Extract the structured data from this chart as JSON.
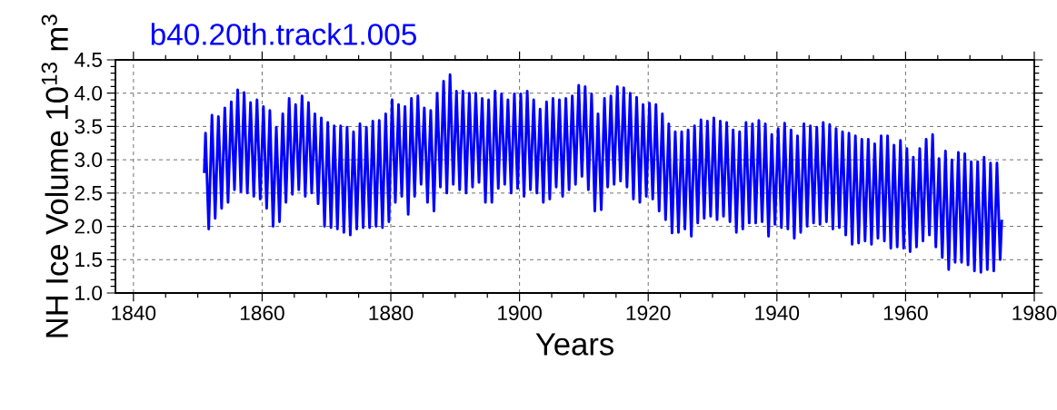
{
  "chart_data": {
    "type": "line",
    "title": "b40.20th.track1.005",
    "xlabel": "Years",
    "ylabel": "NH Ice Volume 10$^{13}$ m$^{3}$",
    "color": "#0000ff",
    "line_style": "solid",
    "grid": true,
    "xlim": [
      1837.2,
      1980
    ],
    "ylim": [
      1,
      4.5
    ],
    "xticks": [
      1840,
      1860,
      1880,
      1900,
      1920,
      1940,
      1960,
      1980
    ],
    "yticks": [
      {
        "value": 1,
        "label": "1.0"
      },
      {
        "value": 1.5,
        "label": "1.5"
      },
      {
        "value": 2,
        "label": "2.0"
      },
      {
        "value": 2.5,
        "label": "2.5"
      },
      {
        "value": 3,
        "label": "3.0"
      },
      {
        "value": 3.5,
        "label": "3.5"
      },
      {
        "value": 4,
        "label": "4.0"
      },
      {
        "value": 4.5,
        "label": "4.5"
      }
    ],
    "x": [
      1851.0,
      1851.2,
      1851.7,
      1852.2,
      1852.7,
      1853.2,
      1853.7,
      1854.2,
      1854.7,
      1855.2,
      1855.7,
      1856.2,
      1856.7,
      1857.2,
      1857.7,
      1858.2,
      1858.7,
      1859.2,
      1859.7,
      1860.2,
      1860.7,
      1861.2,
      1861.7,
      1862.2,
      1862.7,
      1863.2,
      1863.7,
      1864.2,
      1864.7,
      1865.2,
      1865.7,
      1866.2,
      1866.7,
      1867.2,
      1867.7,
      1868.2,
      1868.7,
      1869.2,
      1869.7,
      1870.2,
      1870.7,
      1871.2,
      1871.7,
      1872.2,
      1872.7,
      1873.2,
      1873.7,
      1874.2,
      1874.7,
      1875.2,
      1875.7,
      1876.2,
      1876.7,
      1877.2,
      1877.7,
      1878.2,
      1878.7,
      1879.2,
      1879.7,
      1880.2,
      1880.7,
      1881.2,
      1881.7,
      1882.2,
      1882.7,
      1883.2,
      1883.7,
      1884.2,
      1884.7,
      1885.2,
      1885.7,
      1886.2,
      1886.7,
      1887.2,
      1887.7,
      1888.2,
      1888.7,
      1889.2,
      1889.7,
      1890.2,
      1890.7,
      1891.2,
      1891.7,
      1892.2,
      1892.7,
      1893.2,
      1893.7,
      1894.2,
      1894.7,
      1895.2,
      1895.7,
      1896.2,
      1896.7,
      1897.2,
      1897.7,
      1898.2,
      1898.7,
      1899.2,
      1899.7,
      1900.2,
      1900.7,
      1901.2,
      1901.7,
      1902.2,
      1902.7,
      1903.2,
      1903.7,
      1904.2,
      1904.7,
      1905.2,
      1905.7,
      1906.2,
      1906.7,
      1907.2,
      1907.7,
      1908.2,
      1908.7,
      1909.2,
      1909.7,
      1910.2,
      1910.7,
      1911.2,
      1911.7,
      1912.2,
      1912.7,
      1913.2,
      1913.7,
      1914.2,
      1914.7,
      1915.2,
      1915.7,
      1916.2,
      1916.7,
      1917.2,
      1917.7,
      1918.2,
      1918.7,
      1919.2,
      1919.7,
      1920.2,
      1920.7,
      1921.2,
      1921.7,
      1922.2,
      1922.7,
      1923.2,
      1923.7,
      1924.2,
      1924.7,
      1925.2,
      1925.7,
      1926.2,
      1926.7,
      1927.2,
      1927.7,
      1928.2,
      1928.7,
      1929.2,
      1929.7,
      1930.2,
      1930.7,
      1931.2,
      1931.7,
      1932.2,
      1932.7,
      1933.2,
      1933.7,
      1934.2,
      1934.7,
      1935.2,
      1935.7,
      1936.2,
      1936.7,
      1937.2,
      1937.7,
      1938.2,
      1938.7,
      1939.2,
      1939.7,
      1940.2,
      1940.7,
      1941.2,
      1941.7,
      1942.2,
      1942.7,
      1943.2,
      1943.7,
      1944.2,
      1944.7,
      1945.2,
      1945.7,
      1946.2,
      1946.7,
      1947.2,
      1947.7,
      1948.2,
      1948.7,
      1949.2,
      1949.7,
      1950.2,
      1950.7,
      1951.2,
      1951.7,
      1952.2,
      1952.7,
      1953.2,
      1953.7,
      1954.2,
      1954.7,
      1955.2,
      1955.7,
      1956.2,
      1956.7,
      1957.2,
      1957.7,
      1958.2,
      1958.7,
      1959.2,
      1959.7,
      1960.2,
      1960.7,
      1961.2,
      1961.7,
      1962.2,
      1962.7,
      1963.2,
      1963.7,
      1964.2,
      1964.7,
      1965.2,
      1965.7,
      1966.2,
      1966.7,
      1967.2,
      1967.7,
      1968.2,
      1968.7,
      1969.2,
      1969.7,
      1970.2,
      1970.7,
      1971.2,
      1971.7,
      1972.2,
      1972.7,
      1973.2,
      1973.7,
      1974.2,
      1974.7,
      1974.95
    ],
    "values": [
      2.8,
      3.4,
      1.96,
      3.67,
      2.12,
      3.65,
      2.27,
      3.78,
      2.36,
      3.87,
      2.55,
      4.05,
      2.52,
      4.01,
      2.5,
      3.86,
      2.45,
      3.9,
      2.41,
      3.8,
      2.27,
      3.74,
      2.0,
      3.49,
      2.07,
      3.69,
      2.36,
      3.92,
      2.48,
      3.83,
      2.55,
      3.96,
      2.45,
      3.86,
      2.5,
      3.69,
      2.34,
      3.63,
      2.0,
      3.56,
      1.98,
      3.51,
      1.96,
      3.51,
      1.91,
      3.49,
      1.87,
      3.42,
      1.96,
      3.54,
      1.98,
      3.49,
      1.98,
      3.58,
      2.0,
      3.59,
      1.98,
      3.69,
      2.07,
      3.9,
      2.36,
      3.83,
      2.45,
      3.8,
      2.18,
      3.92,
      2.45,
      3.96,
      2.63,
      3.78,
      2.36,
      3.74,
      2.23,
      4.0,
      2.59,
      4.18,
      2.5,
      4.28,
      2.63,
      4.03,
      2.55,
      4.03,
      2.5,
      4.0,
      2.59,
      4.0,
      2.66,
      3.92,
      2.36,
      3.9,
      2.36,
      4.03,
      2.57,
      3.99,
      2.63,
      3.9,
      2.5,
      3.99,
      2.57,
      3.99,
      2.45,
      4.03,
      2.55,
      3.9,
      2.5,
      3.76,
      2.36,
      3.87,
      2.41,
      3.92,
      2.59,
      3.9,
      2.45,
      3.92,
      2.55,
      3.96,
      2.63,
      4.12,
      2.75,
      4.1,
      2.55,
      3.99,
      2.23,
      3.69,
      2.25,
      3.92,
      2.59,
      3.96,
      2.63,
      4.1,
      2.68,
      4.08,
      2.59,
      4.0,
      2.41,
      3.94,
      2.36,
      3.83,
      2.45,
      3.85,
      2.41,
      3.83,
      2.23,
      3.69,
      2.1,
      3.54,
      1.9,
      3.42,
      1.91,
      3.42,
      1.96,
      3.45,
      1.85,
      3.51,
      2.05,
      3.6,
      2.12,
      3.58,
      2.15,
      3.63,
      2.1,
      3.58,
      2.15,
      3.56,
      2.07,
      3.45,
      1.91,
      3.42,
      1.96,
      3.56,
      2.05,
      3.54,
      2.05,
      3.59,
      2.07,
      3.54,
      1.85,
      3.38,
      2.03,
      3.47,
      1.98,
      3.55,
      1.96,
      3.45,
      1.82,
      3.36,
      1.91,
      3.54,
      2.0,
      3.51,
      2.05,
      3.49,
      2.03,
      3.56,
      2.07,
      3.53,
      1.96,
      3.47,
      1.98,
      3.42,
      1.87,
      3.4,
      1.73,
      3.36,
      1.75,
      3.31,
      1.78,
      3.31,
      1.73,
      3.24,
      1.82,
      3.36,
      1.78,
      3.36,
      1.67,
      3.22,
      1.69,
      3.29,
      1.67,
      3.17,
      1.62,
      3.04,
      1.69,
      3.17,
      1.78,
      3.31,
      1.87,
      3.38,
      1.69,
      3.02,
      1.53,
      3.13,
      1.35,
      3.0,
      1.46,
      3.11,
      1.46,
      3.09,
      1.42,
      2.97,
      1.33,
      2.97,
      1.31,
      3.04,
      1.35,
      2.95,
      1.33,
      2.95,
      1.5,
      2.1
    ]
  }
}
